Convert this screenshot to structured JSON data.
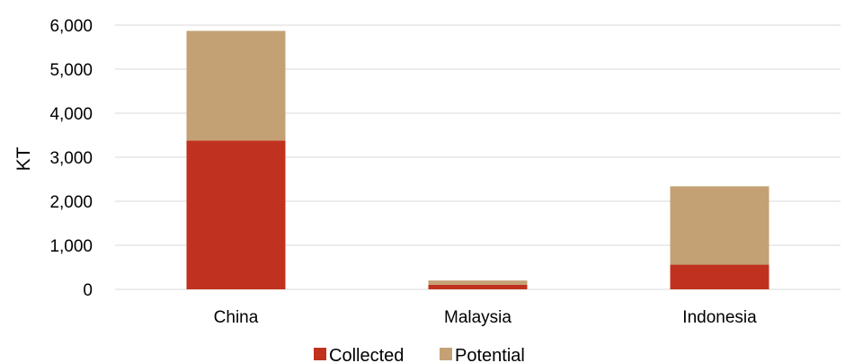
{
  "chart_data": {
    "type": "bar",
    "stacked": true,
    "categories": [
      "China",
      "Malaysia",
      "Indonesia"
    ],
    "series": [
      {
        "name": "Collected",
        "color": "#c0321f",
        "values": [
          3380,
          105,
          560
        ]
      },
      {
        "name": "Potential",
        "color": "#c4a174",
        "values": [
          2490,
          95,
          1780
        ]
      }
    ],
    "title": "",
    "xlabel": "",
    "ylabel": "KT",
    "ylim": [
      0,
      6000
    ],
    "yticks": [
      "0",
      "1,000",
      "2,000",
      "3,000",
      "4,000",
      "5,000",
      "6,000"
    ],
    "ytick_values": [
      0,
      1000,
      2000,
      3000,
      4000,
      5000,
      6000
    ],
    "grid": true,
    "gridline_color": "#d9d9d9",
    "legend_position": "bottom"
  }
}
